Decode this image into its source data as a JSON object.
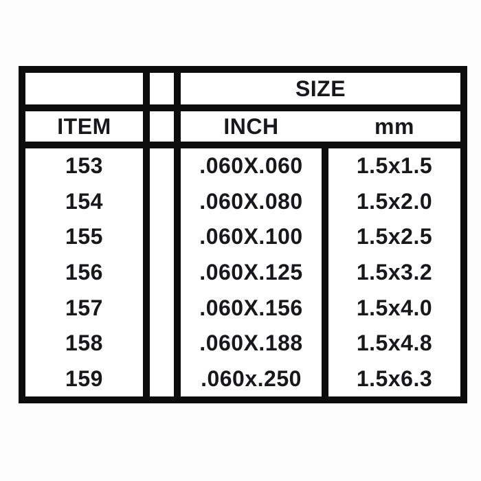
{
  "table": {
    "size_header": "SIZE",
    "item_header": "ITEM",
    "inch_header": "INCH",
    "mm_header": "mm",
    "rows": [
      {
        "item": "153",
        "inch": ".060X.060",
        "mm": "1.5x1.5"
      },
      {
        "item": "154",
        "inch": ".060X.080",
        "mm": "1.5x2.0"
      },
      {
        "item": "155",
        "inch": ".060X.100",
        "mm": "1.5x2.5"
      },
      {
        "item": "156",
        "inch": ".060X.125",
        "mm": "1.5x3.2"
      },
      {
        "item": "157",
        "inch": ".060X.156",
        "mm": "1.5x4.0"
      },
      {
        "item": "158",
        "inch": ".060X.188",
        "mm": "1.5x4.8"
      },
      {
        "item": "159",
        "inch": ".060x.250",
        "mm": "1.5x6.3"
      }
    ],
    "colors": {
      "border": "#0c0c0c",
      "text": "#17171c",
      "background": "#fdfdfd"
    }
  }
}
